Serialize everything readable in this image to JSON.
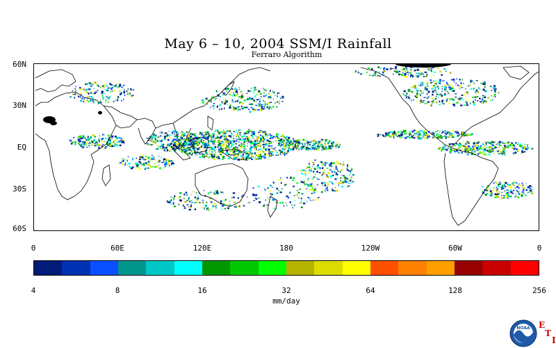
{
  "title": "May 6 – 10, 2004 SSM/I Rainfall",
  "subtitle": "Ferraro Algorithm",
  "lat_labels": [
    "60N",
    "30N",
    "EQ",
    "30S",
    "60S"
  ],
  "lon_labels": [
    "0",
    "60E",
    "120E",
    "180",
    "120W",
    "60W",
    "0"
  ],
  "colorbar": {
    "colors": [
      "#001c78",
      "#0032b4",
      "#0a50ff",
      "#00968c",
      "#00c8c8",
      "#00ffff",
      "#009600",
      "#00c800",
      "#00ff00",
      "#b4b400",
      "#dcdc00",
      "#ffff00",
      "#ff5000",
      "#ff8200",
      "#ffa000",
      "#960000",
      "#c80000",
      "#ff0000"
    ],
    "tick_labels": [
      "4",
      "8",
      "16",
      "32",
      "64",
      "128",
      "256"
    ],
    "units": "mm/day"
  },
  "logo": {
    "icon": "noaa-logo-icon",
    "text": "NOAA",
    "letters": [
      "E",
      "T",
      "I"
    ]
  }
}
